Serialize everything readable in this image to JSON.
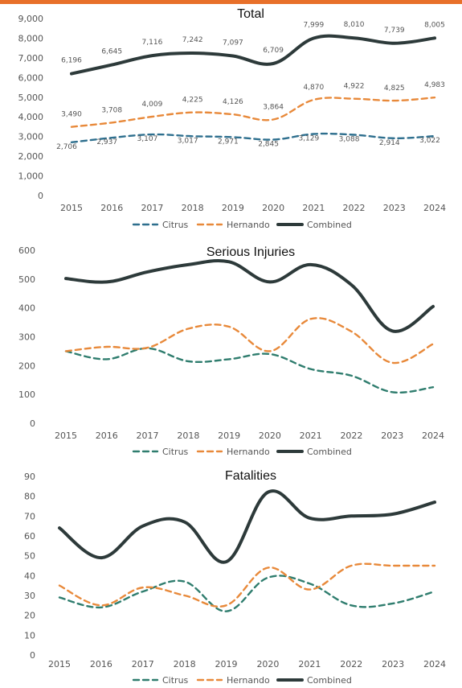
{
  "colors": {
    "accent_bar": "#e8702a",
    "Citrus": "#2e6f8e",
    "Hernando": "#e8893a",
    "Combined": "#2d3a3a",
    "Citrus_alt": "#2f7d6e"
  },
  "chart_data": [
    {
      "type": "line",
      "title": "Total",
      "categories": [
        "2015",
        "2016",
        "2017",
        "2018",
        "2019",
        "2020",
        "2021",
        "2022",
        "2023",
        "2024"
      ],
      "ylim": [
        0,
        9000
      ],
      "yticks": [
        "0",
        "1,000",
        "2,000",
        "3,000",
        "4,000",
        "5,000",
        "6,000",
        "7,000",
        "8,000",
        "9,000"
      ],
      "grid": false,
      "legend": "bottom",
      "data_labels": true,
      "series": [
        {
          "name": "Citrus",
          "style": "dashed",
          "color_key": "Citrus",
          "values": [
            2706,
            2937,
            3107,
            3017,
            2971,
            2845,
            3129,
            3088,
            2914,
            3022
          ],
          "labels": [
            "2,706",
            "2,937",
            "3,107",
            "3,017",
            "2,971",
            "2,845",
            "3,129",
            "3,088",
            "2,914",
            "3,022"
          ]
        },
        {
          "name": "Hernando",
          "style": "dashed",
          "color_key": "Hernando",
          "values": [
            3490,
            3708,
            4009,
            4225,
            4126,
            3864,
            4870,
            4922,
            4825,
            4983
          ],
          "labels": [
            "3,490",
            "3,708",
            "4,009",
            "4,225",
            "4,126",
            "3,864",
            "4,870",
            "4,922",
            "4,825",
            "4,983"
          ]
        },
        {
          "name": "Combined",
          "style": "solid",
          "color_key": "Combined",
          "values": [
            6196,
            6645,
            7116,
            7242,
            7097,
            6709,
            7999,
            8010,
            7739,
            8005
          ],
          "labels": [
            "6,196",
            "6,645",
            "7,116",
            "7,242",
            "7,097",
            "6,709",
            "7,999",
            "8,010",
            "7,739",
            "8,005"
          ]
        }
      ]
    },
    {
      "type": "line",
      "title": "Serious Injuries",
      "categories": [
        "2015",
        "2016",
        "2017",
        "2018",
        "2019",
        "2020",
        "2021",
        "2022",
        "2023",
        "2024"
      ],
      "ylim": [
        0,
        600
      ],
      "yticks": [
        "0",
        "100",
        "200",
        "300",
        "400",
        "500",
        "600"
      ],
      "grid": false,
      "legend": "bottom",
      "data_labels": false,
      "series": [
        {
          "name": "Citrus",
          "style": "dashed",
          "color_key": "Citrus_alt",
          "values": [
            250,
            222,
            260,
            215,
            222,
            240,
            188,
            165,
            108,
            125
          ]
        },
        {
          "name": "Hernando",
          "style": "dashed",
          "color_key": "Hernando",
          "values": [
            250,
            265,
            262,
            328,
            335,
            250,
            362,
            318,
            210,
            275
          ]
        },
        {
          "name": "Combined",
          "style": "solid",
          "color_key": "Combined",
          "values": [
            502,
            490,
            525,
            550,
            560,
            490,
            550,
            480,
            320,
            405
          ]
        }
      ]
    },
    {
      "type": "line",
      "title": "Fatalities",
      "categories": [
        "2015",
        "2016",
        "2017",
        "2018",
        "2019",
        "2020",
        "2021",
        "2022",
        "2023",
        "2024"
      ],
      "ylim": [
        0,
        90
      ],
      "yticks": [
        "0",
        "10",
        "20",
        "30",
        "40",
        "50",
        "60",
        "70",
        "80",
        "90"
      ],
      "grid": false,
      "legend": "bottom",
      "data_labels": false,
      "series": [
        {
          "name": "Citrus",
          "style": "dashed",
          "color_key": "Citrus_alt",
          "values": [
            29,
            24,
            32,
            37,
            22,
            39,
            36,
            25,
            26,
            32
          ]
        },
        {
          "name": "Hernando",
          "style": "dashed",
          "color_key": "Hernando",
          "values": [
            35,
            25,
            34,
            30,
            25,
            44,
            33,
            45,
            45,
            45
          ]
        },
        {
          "name": "Combined",
          "style": "solid",
          "color_key": "Combined",
          "values": [
            64,
            49,
            65,
            67,
            47,
            82,
            69,
            70,
            71,
            77
          ]
        }
      ]
    }
  ]
}
